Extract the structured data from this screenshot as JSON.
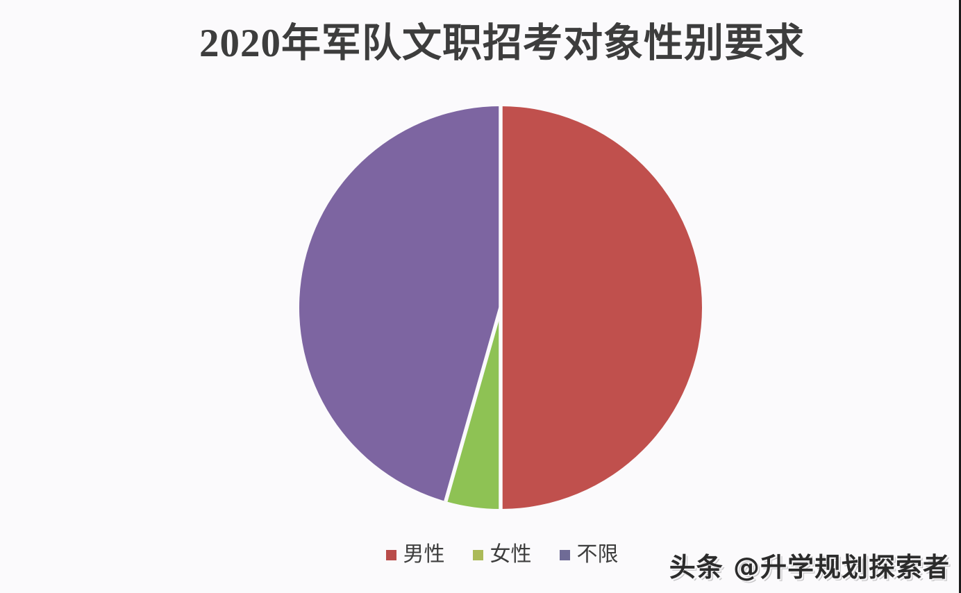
{
  "page": {
    "background_color": "#fbfafc",
    "right_edge_border_color": "#1b1b1b"
  },
  "chart_data": {
    "type": "pie",
    "title": "2020年军队文职招考对象性别要求",
    "categories": [
      "男性",
      "女性",
      "不限"
    ],
    "values": [
      50,
      4.4,
      45.6
    ],
    "unit": "percent_estimated_from_pixels",
    "colors": [
      "#c0504d",
      "#8ec254",
      "#7d65a1"
    ],
    "legend_colors": [
      "#b94c4a",
      "#abba58",
      "#6f6b96"
    ],
    "slice_ids": [
      "male",
      "female",
      "unrestricted"
    ],
    "start_angle_deg": 0,
    "direction": "clockwise",
    "separator_color": "#fbfafc",
    "legend_position": "bottom",
    "title_color": "#3d3d3d",
    "legend_text_color": "#3d3d3d",
    "data_labels_shown": false,
    "grid": false
  },
  "watermark": {
    "text": "头条 @升学规划探索者",
    "color": "#2b2b2b"
  }
}
